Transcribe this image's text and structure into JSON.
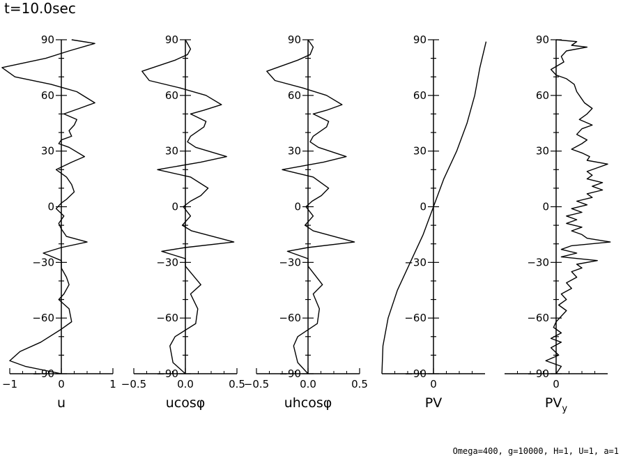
{
  "header": {
    "time": "t=10.0sec"
  },
  "footer": {
    "params": "Omega=400, g=10000, H=1, U=1, a=1"
  },
  "chart_data": [
    {
      "type": "line",
      "xlabel": "u",
      "xlim": [
        -1,
        1
      ],
      "xticks": [
        "−1",
        "0",
        "1"
      ],
      "xtick_values": [
        -1,
        0,
        1
      ],
      "ylim": [
        -90,
        90
      ],
      "yticks": [
        "90",
        "60",
        "30",
        "0",
        "−30",
        "−60",
        "−90"
      ],
      "series": [
        {
          "points": [
            [
              0.2,
              90
            ],
            [
              0.65,
              88
            ],
            [
              0.15,
              84
            ],
            [
              -0.3,
              80
            ],
            [
              -1.15,
              75
            ],
            [
              -0.9,
              70
            ],
            [
              -0.2,
              66
            ],
            [
              0.3,
              62
            ],
            [
              0.65,
              56
            ],
            [
              0.35,
              53
            ],
            [
              0.05,
              50
            ],
            [
              0.3,
              47
            ],
            [
              0.25,
              44
            ],
            [
              0.15,
              41
            ],
            [
              0.2,
              38
            ],
            [
              0.0,
              36
            ],
            [
              -0.05,
              34
            ],
            [
              0.15,
              32
            ],
            [
              0.45,
              27
            ],
            [
              0.2,
              24
            ],
            [
              -0.1,
              20
            ],
            [
              0.1,
              16
            ],
            [
              0.2,
              12
            ],
            [
              0.25,
              8
            ],
            [
              0.1,
              4
            ],
            [
              0.0,
              2
            ],
            [
              -0.1,
              -1
            ],
            [
              0.05,
              -5
            ],
            [
              -0.05,
              -9
            ],
            [
              0.0,
              -12
            ],
            [
              0.1,
              -16
            ],
            [
              0.5,
              -19
            ],
            [
              0.0,
              -22
            ],
            [
              -0.35,
              -25
            ],
            [
              0.0,
              -29
            ],
            [
              0.0,
              -33
            ],
            [
              0.1,
              -38
            ],
            [
              0.15,
              -42
            ],
            [
              0.05,
              -47
            ],
            [
              -0.05,
              -50
            ],
            [
              0.15,
              -55
            ],
            [
              0.2,
              -62
            ],
            [
              0.0,
              -66
            ],
            [
              -0.4,
              -73
            ],
            [
              -0.8,
              -78
            ],
            [
              -1.0,
              -83
            ],
            [
              -0.7,
              -86
            ],
            [
              0.0,
              -90
            ]
          ]
        }
      ]
    },
    {
      "type": "line",
      "xlabel": "ucosφ",
      "xlim": [
        -0.5,
        0.5
      ],
      "xticks": [
        "−0.5",
        "0.0",
        "0.5"
      ],
      "xtick_values": [
        -0.5,
        0,
        0.5
      ],
      "ylim": [
        -90,
        90
      ],
      "yticks": [
        "90",
        "60",
        "30",
        "0",
        "−30",
        "−60",
        "−90"
      ],
      "series": [
        {
          "points": [
            [
              0.0,
              90
            ],
            [
              0.05,
              85
            ],
            [
              0.02,
              82
            ],
            [
              -0.1,
              79
            ],
            [
              -0.42,
              73
            ],
            [
              -0.35,
              68
            ],
            [
              -0.05,
              64
            ],
            [
              0.2,
              60
            ],
            [
              0.35,
              55
            ],
            [
              0.18,
              52
            ],
            [
              0.05,
              50
            ],
            [
              0.2,
              46
            ],
            [
              0.18,
              43
            ],
            [
              0.05,
              38
            ],
            [
              0.02,
              35
            ],
            [
              0.1,
              32
            ],
            [
              0.4,
              27
            ],
            [
              0.15,
              24
            ],
            [
              -0.27,
              20
            ],
            [
              0.05,
              16
            ],
            [
              0.22,
              10
            ],
            [
              0.15,
              6
            ],
            [
              0.05,
              3
            ],
            [
              -0.02,
              0
            ],
            [
              0.05,
              -5
            ],
            [
              -0.03,
              -10
            ],
            [
              0.06,
              -13
            ],
            [
              0.47,
              -19
            ],
            [
              0.0,
              -22
            ],
            [
              -0.23,
              -24
            ],
            [
              0.0,
              -28
            ],
            [
              0.0,
              -32
            ],
            [
              0.15,
              -42
            ],
            [
              0.05,
              -47
            ],
            [
              0.12,
              -55
            ],
            [
              0.1,
              -63
            ],
            [
              -0.1,
              -70
            ],
            [
              -0.15,
              -75
            ],
            [
              -0.12,
              -84
            ],
            [
              0.0,
              -90
            ]
          ]
        }
      ]
    },
    {
      "type": "line",
      "xlabel": "uhcosφ",
      "xlim": [
        -0.5,
        0.5
      ],
      "xticks": [
        "−0.5",
        "0.0",
        "0.5"
      ],
      "xtick_values": [
        -0.5,
        0,
        0.5
      ],
      "ylim": [
        -90,
        90
      ],
      "yticks": [
        "90",
        "60",
        "30",
        "0",
        "−30",
        "−60",
        "−90"
      ],
      "series": [
        {
          "points": [
            [
              0.0,
              90
            ],
            [
              0.05,
              86
            ],
            [
              0.02,
              82
            ],
            [
              -0.1,
              79
            ],
            [
              -0.4,
              73
            ],
            [
              -0.32,
              68
            ],
            [
              -0.05,
              64
            ],
            [
              0.18,
              60
            ],
            [
              0.33,
              55
            ],
            [
              0.18,
              52
            ],
            [
              0.05,
              50
            ],
            [
              0.2,
              46
            ],
            [
              0.18,
              43
            ],
            [
              0.05,
              38
            ],
            [
              0.02,
              35
            ],
            [
              0.1,
              32
            ],
            [
              0.37,
              27
            ],
            [
              0.15,
              24
            ],
            [
              -0.25,
              20
            ],
            [
              0.05,
              16
            ],
            [
              0.2,
              10
            ],
            [
              0.13,
              6
            ],
            [
              0.04,
              3
            ],
            [
              -0.02,
              0
            ],
            [
              0.05,
              -5
            ],
            [
              -0.03,
              -10
            ],
            [
              0.05,
              -13
            ],
            [
              0.45,
              -19
            ],
            [
              0.0,
              -22
            ],
            [
              -0.2,
              -24
            ],
            [
              0.0,
              -28
            ],
            [
              0.0,
              -32
            ],
            [
              0.14,
              -42
            ],
            [
              0.05,
              -47
            ],
            [
              0.11,
              -55
            ],
            [
              0.09,
              -63
            ],
            [
              -0.1,
              -70
            ],
            [
              -0.14,
              -75
            ],
            [
              -0.1,
              -84
            ],
            [
              0.0,
              -90
            ]
          ]
        }
      ]
    },
    {
      "type": "line",
      "xlabel": "PV",
      "xlim": [
        -1,
        1
      ],
      "xticks": [
        "0"
      ],
      "xtick_values": [
        0
      ],
      "ylim": [
        -90,
        90
      ],
      "yticks": [
        "90",
        "60",
        "30",
        "0",
        "−30",
        "−60",
        "−90"
      ],
      "series": [
        {
          "points": [
            [
              -1.0,
              -90
            ],
            [
              -0.98,
              -75
            ],
            [
              -0.88,
              -60
            ],
            [
              -0.7,
              -45
            ],
            [
              -0.45,
              -30
            ],
            [
              -0.2,
              -15
            ],
            [
              0.0,
              0
            ],
            [
              0.2,
              15
            ],
            [
              0.45,
              30
            ],
            [
              0.65,
              45
            ],
            [
              0.8,
              60
            ],
            [
              0.9,
              75
            ],
            [
              1.02,
              89
            ]
          ]
        }
      ]
    },
    {
      "type": "line",
      "xlabel": "PV",
      "xlabel_sub": "y",
      "xlim": [
        -1,
        1
      ],
      "xticks": [
        "0"
      ],
      "xtick_values": [
        0
      ],
      "ylim": [
        -90,
        90
      ],
      "yticks": [
        "90",
        "60",
        "30",
        "0",
        "−30",
        "−60",
        "−90"
      ],
      "series": [
        {
          "points": [
            [
              0.0,
              90
            ],
            [
              0.4,
              89
            ],
            [
              0.3,
              87
            ],
            [
              0.6,
              86
            ],
            [
              0.2,
              84
            ],
            [
              0.1,
              81
            ],
            [
              0.15,
              78
            ],
            [
              -0.1,
              74
            ],
            [
              0.0,
              71
            ],
            [
              0.2,
              69
            ],
            [
              0.35,
              66
            ],
            [
              0.4,
              62
            ],
            [
              0.5,
              58
            ],
            [
              0.55,
              56
            ],
            [
              0.7,
              53
            ],
            [
              0.6,
              50
            ],
            [
              0.45,
              47
            ],
            [
              0.7,
              44
            ],
            [
              0.5,
              42
            ],
            [
              0.4,
              39
            ],
            [
              0.6,
              36
            ],
            [
              0.5,
              34
            ],
            [
              0.3,
              31
            ],
            [
              0.5,
              29
            ],
            [
              0.65,
              27
            ],
            [
              0.6,
              25
            ],
            [
              1.0,
              23
            ],
            [
              0.8,
              21
            ],
            [
              0.6,
              19
            ],
            [
              0.7,
              17
            ],
            [
              0.6,
              15
            ],
            [
              0.9,
              13
            ],
            [
              0.7,
              11
            ],
            [
              0.9,
              9
            ],
            [
              0.6,
              7
            ],
            [
              0.7,
              5
            ],
            [
              0.4,
              3
            ],
            [
              0.6,
              1
            ],
            [
              0.3,
              -1
            ],
            [
              0.5,
              -3
            ],
            [
              0.2,
              -5
            ],
            [
              0.4,
              -7
            ],
            [
              0.2,
              -9
            ],
            [
              0.5,
              -11
            ],
            [
              0.3,
              -13
            ],
            [
              0.5,
              -15
            ],
            [
              0.6,
              -17
            ],
            [
              1.05,
              -19
            ],
            [
              0.3,
              -21
            ],
            [
              0.1,
              -23
            ],
            [
              0.4,
              -25
            ],
            [
              0.1,
              -27
            ],
            [
              0.8,
              -29
            ],
            [
              0.4,
              -31
            ],
            [
              0.5,
              -33
            ],
            [
              0.3,
              -35
            ],
            [
              0.4,
              -38
            ],
            [
              0.2,
              -41
            ],
            [
              0.3,
              -44
            ],
            [
              0.1,
              -47
            ],
            [
              0.2,
              -50
            ],
            [
              0.05,
              -53
            ],
            [
              0.2,
              -56
            ],
            [
              0.1,
              -59
            ],
            [
              0.0,
              -62
            ],
            [
              -0.05,
              -65
            ],
            [
              0.1,
              -68
            ],
            [
              -0.1,
              -71
            ],
            [
              0.1,
              -73
            ],
            [
              -0.1,
              -76
            ],
            [
              0.05,
              -80
            ],
            [
              -0.2,
              -83
            ],
            [
              0.1,
              -86
            ],
            [
              0.0,
              -90
            ]
          ]
        }
      ]
    }
  ]
}
